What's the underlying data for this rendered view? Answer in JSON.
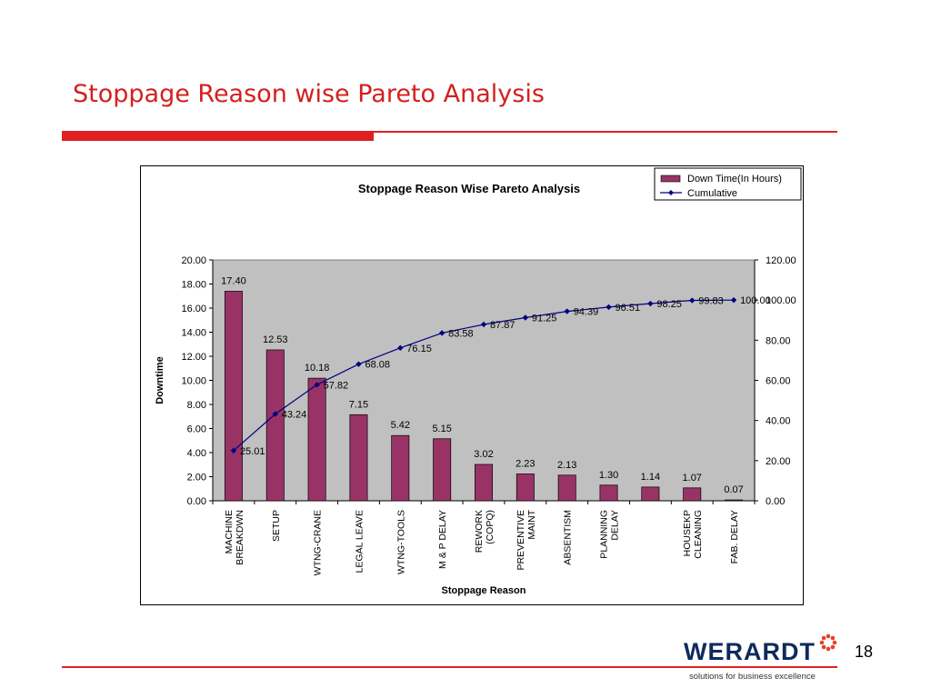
{
  "slide": {
    "title": "Stoppage Reason wise Pareto Analysis",
    "page_number": "18",
    "accent_color": "#e02020"
  },
  "logo": {
    "name": "WERARDT",
    "tagline": "solutions for business excellence",
    "text_color": "#0f2a5c",
    "mark_color": "#e8402a"
  },
  "chart_data": {
    "type": "bar",
    "title": "Stoppage Reason Wise Pareto Analysis",
    "xlabel": "Stoppage Reason",
    "ylabel": "Downtime",
    "categories": [
      [
        "MACHINE",
        "BREAKDWN"
      ],
      [
        "SETUP"
      ],
      [
        "WTNG-CRANE"
      ],
      [
        "LEGAL LEAVE"
      ],
      [
        "WTNG-TOOLS"
      ],
      [
        "M & P DELAY"
      ],
      [
        "REWORK",
        "(COPQ)"
      ],
      [
        "PREVENTIVE",
        "MAINT"
      ],
      [
        "ABSENTISM"
      ],
      [
        "PLANNING",
        "DELAY"
      ],
      [],
      [
        "HOUSEKP",
        "CLEANING"
      ],
      [
        "FAB. DELAY"
      ]
    ],
    "series": [
      {
        "name": "Down Time(In Hours)",
        "type": "bar",
        "axis": "left",
        "color": "#993366",
        "values": [
          17.4,
          12.53,
          10.18,
          7.15,
          5.42,
          5.15,
          3.02,
          2.23,
          2.13,
          1.3,
          1.14,
          1.07,
          0.07
        ],
        "labels": [
          "17.40",
          "12.53",
          "10.18",
          "7.15",
          "5.42",
          "5.15",
          "3.02",
          "2.23",
          "2.13",
          "1.30",
          "1.14",
          "1.07",
          "0.07"
        ]
      },
      {
        "name": "Cumulative",
        "type": "line",
        "axis": "right",
        "color": "#000080",
        "values": [
          25.01,
          43.24,
          57.82,
          68.08,
          76.15,
          83.58,
          87.87,
          91.25,
          94.39,
          96.51,
          98.25,
          99.83,
          100.0
        ],
        "labels": [
          "25.01",
          "43.24",
          "57.82",
          "68.08",
          "76.15",
          "83.58",
          "87.87",
          "91.25",
          "94.39",
          "96.51",
          "98.25",
          "99.83",
          "100.00"
        ]
      }
    ],
    "ylim": [
      0,
      20
    ],
    "yticks": [
      "0.00",
      "2.00",
      "4.00",
      "6.00",
      "8.00",
      "10.00",
      "12.00",
      "14.00",
      "16.00",
      "18.00",
      "20.00"
    ],
    "y2lim": [
      0,
      120
    ],
    "y2ticks": [
      "0.00",
      "20.00",
      "40.00",
      "60.00",
      "80.00",
      "100.00",
      "120.00"
    ],
    "plot_background": "#c0c0c0",
    "grid": false,
    "legend_position": "top-right"
  }
}
